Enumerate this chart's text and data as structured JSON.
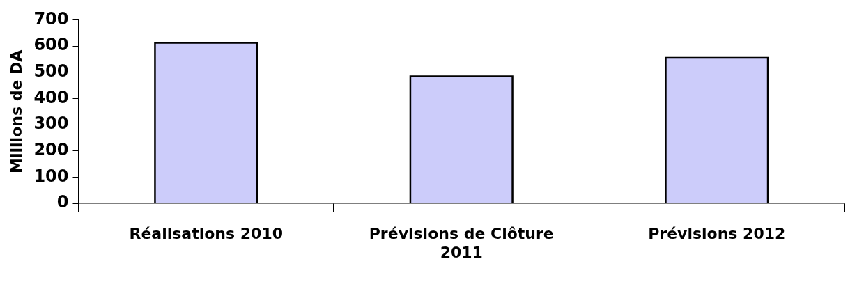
{
  "chart_data": {
    "type": "bar",
    "ylabel": "Millions de DA",
    "categories": [
      "Réalisations 2010",
      "Prévisions de Clôture 2011",
      "Prévisions 2012"
    ],
    "values": [
      612,
      485,
      555
    ],
    "color": "#ccccfa",
    "ylim": [
      0,
      700
    ],
    "yticks": [
      0,
      100,
      200,
      300,
      400,
      500,
      600,
      700
    ],
    "grid": false,
    "legend": false
  }
}
